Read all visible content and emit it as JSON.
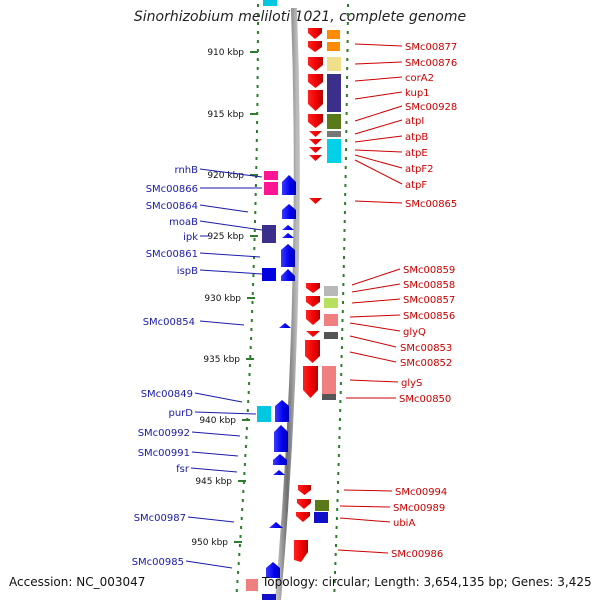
{
  "title": "Sinorhizobium meliloti 1021, complete genome",
  "accession": "Accession: NC_003047",
  "topology": "Topology: circular; Length: 3,654,135 bp; Genes: 3,425",
  "ruler_labels": [
    "910 kbp",
    "915 kbp",
    "920 kbp",
    "925 kbp",
    "930 kbp",
    "935 kbp",
    "940 kbp",
    "945 kbp",
    "950 kbp"
  ],
  "left_labels": [
    "rnhB",
    "SMc00866",
    "SMc00864",
    "moaB",
    "ipk",
    "SMc00861",
    "ispB",
    "SMc00854",
    "SMc00849",
    "purD",
    "SMc00992",
    "SMc00991",
    "fsr",
    "SMc00987",
    "SMc00985"
  ],
  "right_labels": [
    "SMc00877",
    "SMc00876",
    "corA2",
    "kup1",
    "SMc00928",
    "atpI",
    "atpB",
    "atpE",
    "atpF2",
    "atpF",
    "SMc00865",
    "SMc00859",
    "SMc00858",
    "SMc00857",
    "SMc00856",
    "glyQ",
    "SMc00853",
    "SMc00852",
    "glyS",
    "SMc00850",
    "SMc00994",
    "SMc00989",
    "ubiA",
    "SMc00986"
  ],
  "colors": {
    "forward_gene": "#0000ff",
    "reverse_gene": "#ff0000",
    "left_label": "#1a1aa8",
    "right_label": "#cc0000",
    "ruler": "#2e7d2e",
    "backbone": "#808080"
  }
}
